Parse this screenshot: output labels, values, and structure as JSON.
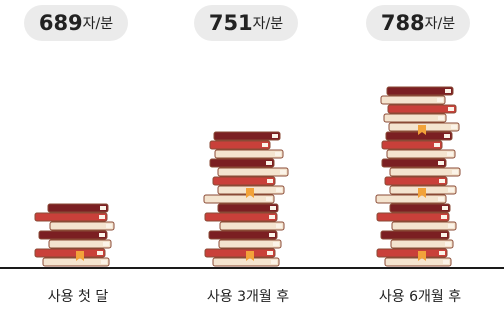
{
  "chart_data": {
    "type": "bookstack",
    "categories": [
      "사용 첫 달",
      "사용 3개월 후",
      "사용 6개월 후"
    ],
    "values": [
      689,
      751,
      788
    ],
    "unit": "자/분",
    "ylim": [
      627,
      794
    ],
    "colors": [
      "#f4e4cf",
      "#c9403a",
      "#7b1f22"
    ]
  }
}
